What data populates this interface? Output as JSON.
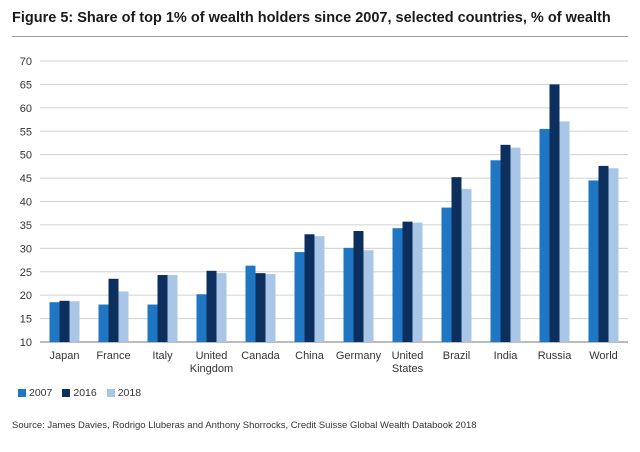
{
  "title": "Figure 5: Share of top 1% of wealth holders since 2007, selected countries, % of wealth",
  "source": "Source: James Davies, Rodrigo Lluberas and Anthony Shorrocks, Credit Suisse Global Wealth Databook 2018",
  "colors": {
    "2007": "#1f77c4",
    "2016": "#0c2f5e",
    "2018": "#aac6e6",
    "grid": "#d0d0d0",
    "axis": "#777777"
  },
  "chart_data": {
    "type": "bar",
    "title": "Figure 5: Share of top 1% of wealth holders since 2007, selected countries, % of wealth",
    "xlabel": "",
    "ylabel": "",
    "ylim": [
      10,
      70
    ],
    "yticks": [
      10,
      15,
      20,
      25,
      30,
      35,
      40,
      45,
      50,
      55,
      60,
      65,
      70
    ],
    "grid": true,
    "legend_position": "bottom-left",
    "categories": [
      [
        "Japan"
      ],
      [
        "France"
      ],
      [
        "Italy"
      ],
      [
        "United",
        "Kingdom"
      ],
      [
        "Canada"
      ],
      [
        "China"
      ],
      [
        "Germany"
      ],
      [
        "United",
        "States"
      ],
      [
        "Brazil"
      ],
      [
        "India"
      ],
      [
        "Russia"
      ],
      [
        "World"
      ]
    ],
    "series": [
      {
        "name": "2007",
        "values": [
          18.5,
          18.0,
          18.0,
          20.2,
          26.3,
          29.2,
          30.1,
          34.3,
          38.7,
          48.8,
          55.5,
          44.5
        ]
      },
      {
        "name": "2016",
        "values": [
          18.8,
          23.5,
          24.3,
          25.2,
          24.7,
          33.0,
          33.7,
          35.7,
          45.2,
          52.1,
          65.0,
          47.6
        ]
      },
      {
        "name": "2018",
        "values": [
          18.7,
          20.8,
          24.3,
          24.7,
          24.5,
          32.6,
          29.6,
          35.5,
          42.7,
          51.5,
          57.1,
          47.1
        ]
      }
    ]
  }
}
